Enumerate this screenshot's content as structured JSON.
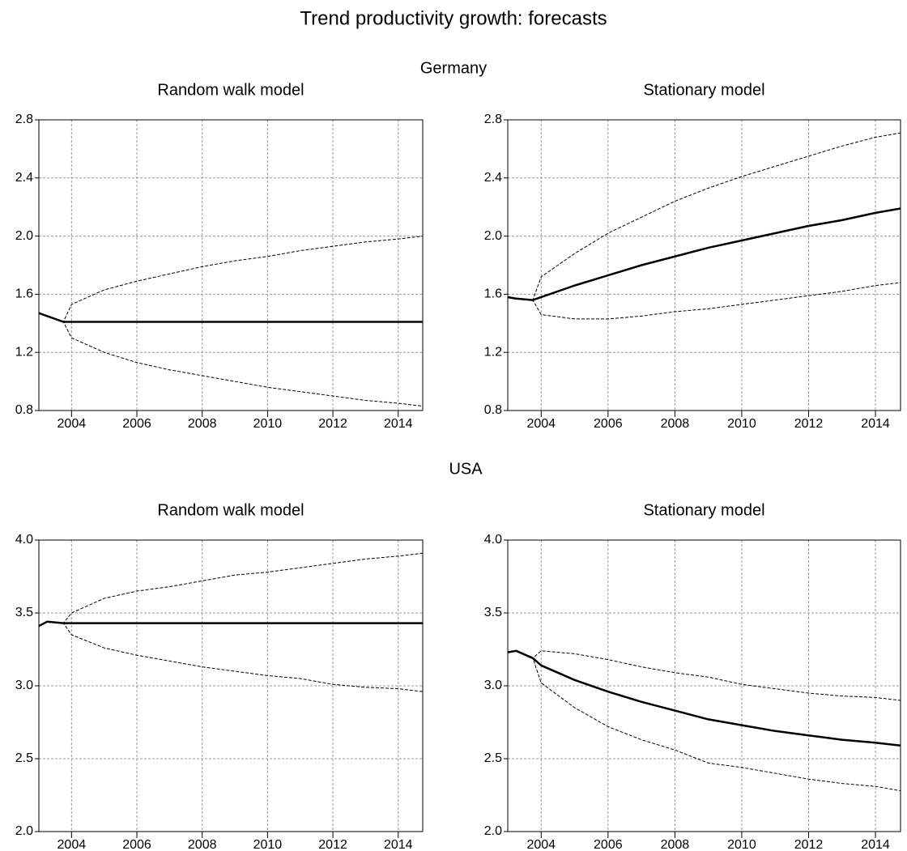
{
  "title": "Trend productivity growth: forecasts",
  "sections": [
    "Germany",
    "USA"
  ],
  "chart_data": [
    {
      "type": "line",
      "title": "Random walk model",
      "x": [
        2003,
        2003.25,
        2003.75,
        2004,
        2005,
        2006,
        2007,
        2008,
        2009,
        2010,
        2011,
        2012,
        2013,
        2014,
        2014.75
      ],
      "xlim": [
        2003,
        2014.75
      ],
      "xticks": [
        2004,
        2006,
        2008,
        2010,
        2012,
        2014
      ],
      "ylim": [
        0.8,
        2.8
      ],
      "yticks": [
        0.8,
        1.2,
        1.6,
        {
          "value": 2,
          "label": "2.0"
        },
        2.4,
        2.8
      ],
      "grid": true,
      "series": [
        {
          "color": "#000000",
          "dashed": false,
          "width": 2.5,
          "values": [
            1.47,
            1.45,
            1.41,
            1.41,
            1.41,
            1.41,
            1.41,
            1.41,
            1.41,
            1.41,
            1.41,
            1.41,
            1.41,
            1.41,
            1.41
          ]
        },
        {
          "color": "#000000",
          "dashed": true,
          "width": 1,
          "values": [
            1.47,
            1.45,
            1.41,
            1.53,
            1.63,
            1.69,
            1.74,
            1.79,
            1.83,
            1.86,
            1.9,
            1.93,
            1.96,
            1.98,
            2.0
          ]
        },
        {
          "color": "#000000",
          "dashed": true,
          "width": 1,
          "values": [
            1.47,
            1.45,
            1.41,
            1.3,
            1.2,
            1.13,
            1.08,
            1.04,
            1.0,
            0.96,
            0.93,
            0.9,
            0.87,
            0.85,
            0.83
          ]
        }
      ]
    },
    {
      "type": "line",
      "title": "Stationary model",
      "x": [
        2003,
        2003.25,
        2003.75,
        2004,
        2005,
        2006,
        2007,
        2008,
        2009,
        2010,
        2011,
        2012,
        2013,
        2014,
        2014.75
      ],
      "xlim": [
        2003,
        2014.75
      ],
      "xticks": [
        2004,
        2006,
        2008,
        2010,
        2012,
        2014
      ],
      "ylim": [
        0.8,
        2.8
      ],
      "yticks": [
        0.8,
        1.2,
        1.6,
        {
          "value": 2,
          "label": "2.0"
        },
        2.4,
        2.8
      ],
      "grid": true,
      "series": [
        {
          "color": "#000000",
          "dashed": false,
          "width": 2.5,
          "values": [
            1.58,
            1.57,
            1.56,
            1.58,
            1.66,
            1.73,
            1.8,
            1.86,
            1.92,
            1.97,
            2.02,
            2.07,
            2.11,
            2.16,
            2.19
          ]
        },
        {
          "color": "#000000",
          "dashed": true,
          "width": 1,
          "values": [
            1.58,
            1.57,
            1.56,
            1.72,
            1.88,
            2.02,
            2.13,
            2.24,
            2.33,
            2.41,
            2.48,
            2.55,
            2.62,
            2.68,
            2.71
          ]
        },
        {
          "color": "#000000",
          "dashed": true,
          "width": 1,
          "values": [
            1.58,
            1.57,
            1.56,
            1.46,
            1.43,
            1.43,
            1.45,
            1.48,
            1.5,
            1.53,
            1.56,
            1.59,
            1.62,
            1.66,
            1.68
          ]
        }
      ]
    },
    {
      "type": "line",
      "title": "Random walk model",
      "x": [
        2003,
        2003.25,
        2003.75,
        2004,
        2005,
        2006,
        2007,
        2008,
        2009,
        2010,
        2011,
        2012,
        2013,
        2014,
        2014.75
      ],
      "xlim": [
        2003,
        2014.75
      ],
      "xticks": [
        2004,
        2006,
        2008,
        2010,
        2012,
        2014
      ],
      "ylim": [
        2,
        4
      ],
      "yticks": [
        {
          "value": 2,
          "label": "2.0"
        },
        2.5,
        {
          "value": 3,
          "label": "3.0"
        },
        3.5,
        {
          "value": 4,
          "label": "4.0"
        }
      ],
      "grid": true,
      "series": [
        {
          "color": "#000000",
          "dashed": false,
          "width": 2.5,
          "values": [
            3.41,
            3.44,
            3.43,
            3.43,
            3.43,
            3.43,
            3.43,
            3.43,
            3.43,
            3.43,
            3.43,
            3.43,
            3.43,
            3.43,
            3.43
          ]
        },
        {
          "color": "#000000",
          "dashed": true,
          "width": 1,
          "values": [
            3.41,
            3.44,
            3.43,
            3.5,
            3.6,
            3.65,
            3.68,
            3.72,
            3.76,
            3.78,
            3.81,
            3.84,
            3.87,
            3.89,
            3.91
          ]
        },
        {
          "color": "#000000",
          "dashed": true,
          "width": 1,
          "values": [
            3.41,
            3.44,
            3.43,
            3.35,
            3.26,
            3.21,
            3.17,
            3.13,
            3.1,
            3.07,
            3.05,
            3.01,
            2.99,
            2.98,
            2.96
          ]
        }
      ]
    },
    {
      "type": "line",
      "title": "Stationary model",
      "x": [
        2003,
        2003.25,
        2003.75,
        2004,
        2005,
        2006,
        2007,
        2008,
        2009,
        2010,
        2011,
        2012,
        2013,
        2014,
        2014.75
      ],
      "xlim": [
        2003,
        2014.75
      ],
      "xticks": [
        2004,
        2006,
        2008,
        2010,
        2012,
        2014
      ],
      "ylim": [
        2,
        4
      ],
      "yticks": [
        {
          "value": 2,
          "label": "2.0"
        },
        2.5,
        {
          "value": 3,
          "label": "3.0"
        },
        3.5,
        {
          "value": 4,
          "label": "4.0"
        }
      ],
      "grid": true,
      "series": [
        {
          "color": "#000000",
          "dashed": false,
          "width": 2.5,
          "values": [
            3.23,
            3.24,
            3.19,
            3.14,
            3.04,
            2.96,
            2.89,
            2.83,
            2.77,
            2.73,
            2.69,
            2.66,
            2.63,
            2.61,
            2.59
          ]
        },
        {
          "color": "#000000",
          "dashed": true,
          "width": 1,
          "values": [
            3.23,
            3.24,
            3.19,
            3.24,
            3.22,
            3.18,
            3.13,
            3.09,
            3.06,
            3.01,
            2.98,
            2.95,
            2.93,
            2.92,
            2.9
          ]
        },
        {
          "color": "#000000",
          "dashed": true,
          "width": 1,
          "values": [
            3.23,
            3.24,
            3.19,
            3.02,
            2.85,
            2.72,
            2.63,
            2.56,
            2.47,
            2.44,
            2.4,
            2.36,
            2.33,
            2.31,
            2.28
          ]
        }
      ]
    }
  ]
}
